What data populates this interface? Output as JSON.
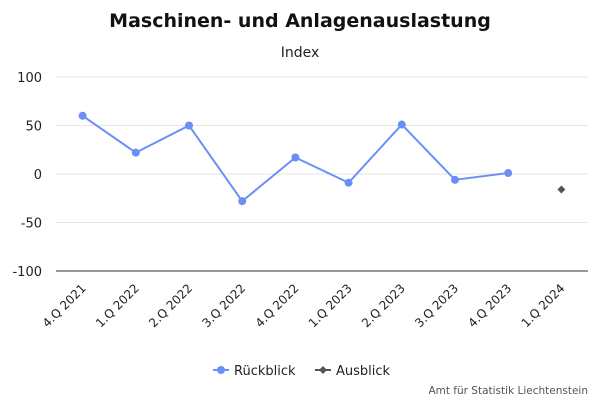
{
  "chart_data": {
    "type": "line",
    "title": "Maschinen- und Anlagenauslastung",
    "subtitle": "Index",
    "categories": [
      "4.Q 2021",
      "1.Q 2022",
      "2.Q 2022",
      "3.Q 2022",
      "4.Q 2022",
      "1.Q 2023",
      "2.Q 2023",
      "3.Q 2023",
      "4.Q 2023",
      "1.Q 2024"
    ],
    "ylim": [
      -100,
      100
    ],
    "yticks": [
      100,
      50,
      0,
      -50,
      -100
    ],
    "grid": true,
    "legend_position": "bottom",
    "series": [
      {
        "name": "Rückblick",
        "color": "#6b8ff7",
        "marker": "circle",
        "values": [
          60,
          22,
          50,
          -28,
          17,
          -9,
          51,
          -6,
          1,
          null
        ]
      },
      {
        "name": "Ausblick",
        "color": "#555555",
        "marker": "diamond",
        "values": [
          null,
          null,
          null,
          null,
          null,
          null,
          null,
          null,
          null,
          -16
        ]
      }
    ]
  },
  "source_credit": "Amt für Statistik Liechtenstein"
}
